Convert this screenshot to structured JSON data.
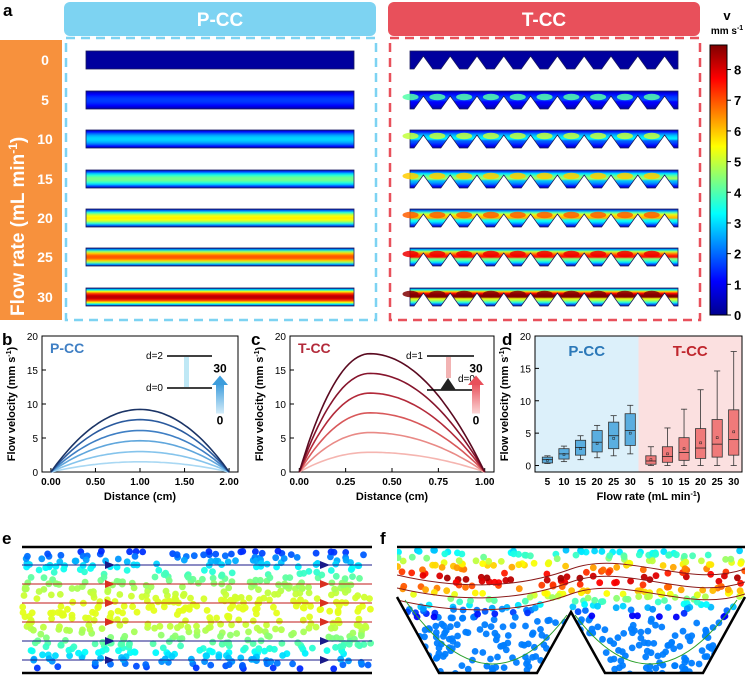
{
  "panel_letters": {
    "a": "a",
    "b": "b",
    "c": "c",
    "d": "d",
    "e": "e",
    "f": "f"
  },
  "panel_a": {
    "pcc_title": "P-CC",
    "tcc_title": "T-CC",
    "row_axis_label": "Flow rate  (mL min",
    "row_axis_sup": "-1",
    "row_axis_close": ")",
    "flow_rates": [
      "0",
      "5",
      "10",
      "15",
      "20",
      "25",
      "30"
    ],
    "colorbar_title": "v",
    "colorbar_unit": "mm s",
    "colorbar_unit_sup": "-1",
    "colorbar_ticks": [
      "0",
      "1",
      "2",
      "3",
      "4",
      "5",
      "6",
      "7",
      "8"
    ]
  },
  "panel_b": {
    "title": "P-CC",
    "ylabel": "Flow velocity (mm s",
    "ylabel_sup": "-1",
    "ylabel_close": ")",
    "xlabel": "Distance (cm)",
    "x_ticks": [
      "0.00",
      "0.50",
      "1.00",
      "1.50",
      "2.00"
    ],
    "y_ticks": [
      "0",
      "5",
      "10",
      "15",
      "20"
    ],
    "inset_top": "d=2",
    "inset_bottom": "d=0",
    "arrow_top": "30",
    "arrow_bottom": "0"
  },
  "panel_c": {
    "title": "T-CC",
    "ylabel": "Flow velocity (mm s",
    "ylabel_sup": "-1",
    "ylabel_close": ")",
    "xlabel": "Distance (cm)",
    "x_ticks": [
      "0.00",
      "0.25",
      "0.50",
      "0.75",
      "1.00"
    ],
    "y_ticks": [
      "0",
      "5",
      "10",
      "15",
      "20"
    ],
    "inset_top": "d=1",
    "inset_bottom": "d=0",
    "arrow_top": "30",
    "arrow_bottom": "0"
  },
  "panel_d": {
    "left_title": "P-CC",
    "right_title": "T-CC",
    "ylabel": "Flow velocity (mm s",
    "ylabel_sup": "-1",
    "ylabel_close": ")",
    "xlabel": "Flow rate (mL min",
    "xlabel_sup": "-1",
    "xlabel_close": ")",
    "x_ticks": [
      "5",
      "10",
      "15",
      "20",
      "25",
      "30",
      "5",
      "10",
      "15",
      "20",
      "25",
      "30"
    ],
    "y_ticks": [
      "0",
      "5",
      "10",
      "15",
      "20"
    ]
  },
  "colors": {
    "pcc_header": "#7dd3f2",
    "tcc_header": "#e8505b",
    "flow_label_bg": "#f7913d",
    "pcc_bg": "#dcf0fa",
    "tcc_bg": "#fbe0e0",
    "pcc_box": "#5aaee0",
    "tcc_box": "#f07a7a"
  },
  "chart_data": [
    {
      "type": "line",
      "panel": "b",
      "title": "P-CC",
      "xlabel": "Distance (cm)",
      "ylabel": "Flow velocity (mm s-1)",
      "xlim": [
        -0.1,
        2.1
      ],
      "ylim": [
        0,
        20
      ],
      "profile": "parabolic",
      "series": [
        {
          "name": "5",
          "x_range": [
            0,
            2
          ],
          "peak_x": 1.0,
          "peak": 1.5,
          "color": "#a9d8f3"
        },
        {
          "name": "10",
          "x_range": [
            0,
            2
          ],
          "peak_x": 1.0,
          "peak": 3.0,
          "color": "#85c4ec"
        },
        {
          "name": "15",
          "x_range": [
            0,
            2
          ],
          "peak_x": 1.0,
          "peak": 4.6,
          "color": "#5fa6dc"
        },
        {
          "name": "20",
          "x_range": [
            0,
            2
          ],
          "peak_x": 1.0,
          "peak": 6.1,
          "color": "#3f7fc4"
        },
        {
          "name": "25",
          "x_range": [
            0,
            2
          ],
          "peak_x": 1.0,
          "peak": 7.7,
          "color": "#2a5a9e"
        },
        {
          "name": "30",
          "x_range": [
            0,
            2
          ],
          "peak_x": 1.0,
          "peak": 9.2,
          "color": "#1b3466"
        }
      ]
    },
    {
      "type": "line",
      "panel": "c",
      "title": "T-CC",
      "xlabel": "Distance (cm)",
      "ylabel": "Flow velocity (mm s-1)",
      "xlim": [
        -0.05,
        1.05
      ],
      "ylim": [
        0,
        20
      ],
      "profile": "skewed",
      "series": [
        {
          "name": "5",
          "x_range": [
            0,
            1
          ],
          "peak_x": 0.38,
          "peak": 2.9,
          "color": "#f5b5b0"
        },
        {
          "name": "10",
          "x_range": [
            0,
            1
          ],
          "peak_x": 0.38,
          "peak": 5.8,
          "color": "#e98a86"
        },
        {
          "name": "15",
          "x_range": [
            0,
            1
          ],
          "peak_x": 0.38,
          "peak": 8.7,
          "color": "#d8585a"
        },
        {
          "name": "20",
          "x_range": [
            0,
            1
          ],
          "peak_x": 0.38,
          "peak": 11.6,
          "color": "#b32a3a"
        },
        {
          "name": "25",
          "x_range": [
            0,
            1
          ],
          "peak_x": 0.38,
          "peak": 14.5,
          "color": "#86142c"
        },
        {
          "name": "30",
          "x_range": [
            0,
            1
          ],
          "peak_x": 0.38,
          "peak": 17.4,
          "color": "#5a0a20"
        }
      ]
    },
    {
      "type": "box",
      "panel": "d",
      "xlabel": "Flow rate (mL min-1)",
      "ylabel": "Flow velocity (mm s-1)",
      "ylim": [
        -1,
        20
      ],
      "groups": [
        {
          "name": "P-CC",
          "color": "#5aaee0",
          "boxes": [
            {
              "rate": "5",
              "min": 0.3,
              "q1": 0.4,
              "median": 0.9,
              "q3": 1.3,
              "max": 1.5,
              "mean": 0.8
            },
            {
              "rate": "10",
              "min": 0.6,
              "q1": 1.0,
              "median": 1.8,
              "q3": 2.6,
              "max": 3.0,
              "mean": 1.7
            },
            {
              "rate": "15",
              "min": 0.9,
              "q1": 1.6,
              "median": 2.8,
              "q3": 3.9,
              "max": 4.6,
              "mean": 2.6
            },
            {
              "rate": "20",
              "min": 1.2,
              "q1": 2.1,
              "median": 3.6,
              "q3": 5.4,
              "max": 6.2,
              "mean": 3.4
            },
            {
              "rate": "25",
              "min": 1.5,
              "q1": 2.6,
              "median": 4.6,
              "q3": 6.7,
              "max": 7.7,
              "mean": 4.2
            },
            {
              "rate": "30",
              "min": 1.8,
              "q1": 3.1,
              "median": 5.4,
              "q3": 8.0,
              "max": 9.3,
              "mean": 5.0
            }
          ]
        },
        {
          "name": "T-CC",
          "color": "#f07a7a",
          "boxes": [
            {
              "rate": "5",
              "min": 0.0,
              "q1": 0.2,
              "median": 0.7,
              "q3": 1.5,
              "max": 2.9,
              "mean": 0.9
            },
            {
              "rate": "10",
              "min": 0.0,
              "q1": 0.5,
              "median": 1.4,
              "q3": 2.9,
              "max": 5.8,
              "mean": 1.8
            },
            {
              "rate": "15",
              "min": 0.0,
              "q1": 0.8,
              "median": 2.0,
              "q3": 4.3,
              "max": 8.7,
              "mean": 2.6
            },
            {
              "rate": "20",
              "min": 0.0,
              "q1": 1.1,
              "median": 2.7,
              "q3": 5.7,
              "max": 11.7,
              "mean": 3.5
            },
            {
              "rate": "25",
              "min": 0.0,
              "q1": 1.3,
              "median": 3.3,
              "q3": 7.1,
              "max": 14.6,
              "mean": 4.3
            },
            {
              "rate": "30",
              "min": 0.0,
              "q1": 1.6,
              "median": 4.0,
              "q3": 8.6,
              "max": 17.6,
              "mean": 5.2
            }
          ]
        }
      ]
    }
  ]
}
